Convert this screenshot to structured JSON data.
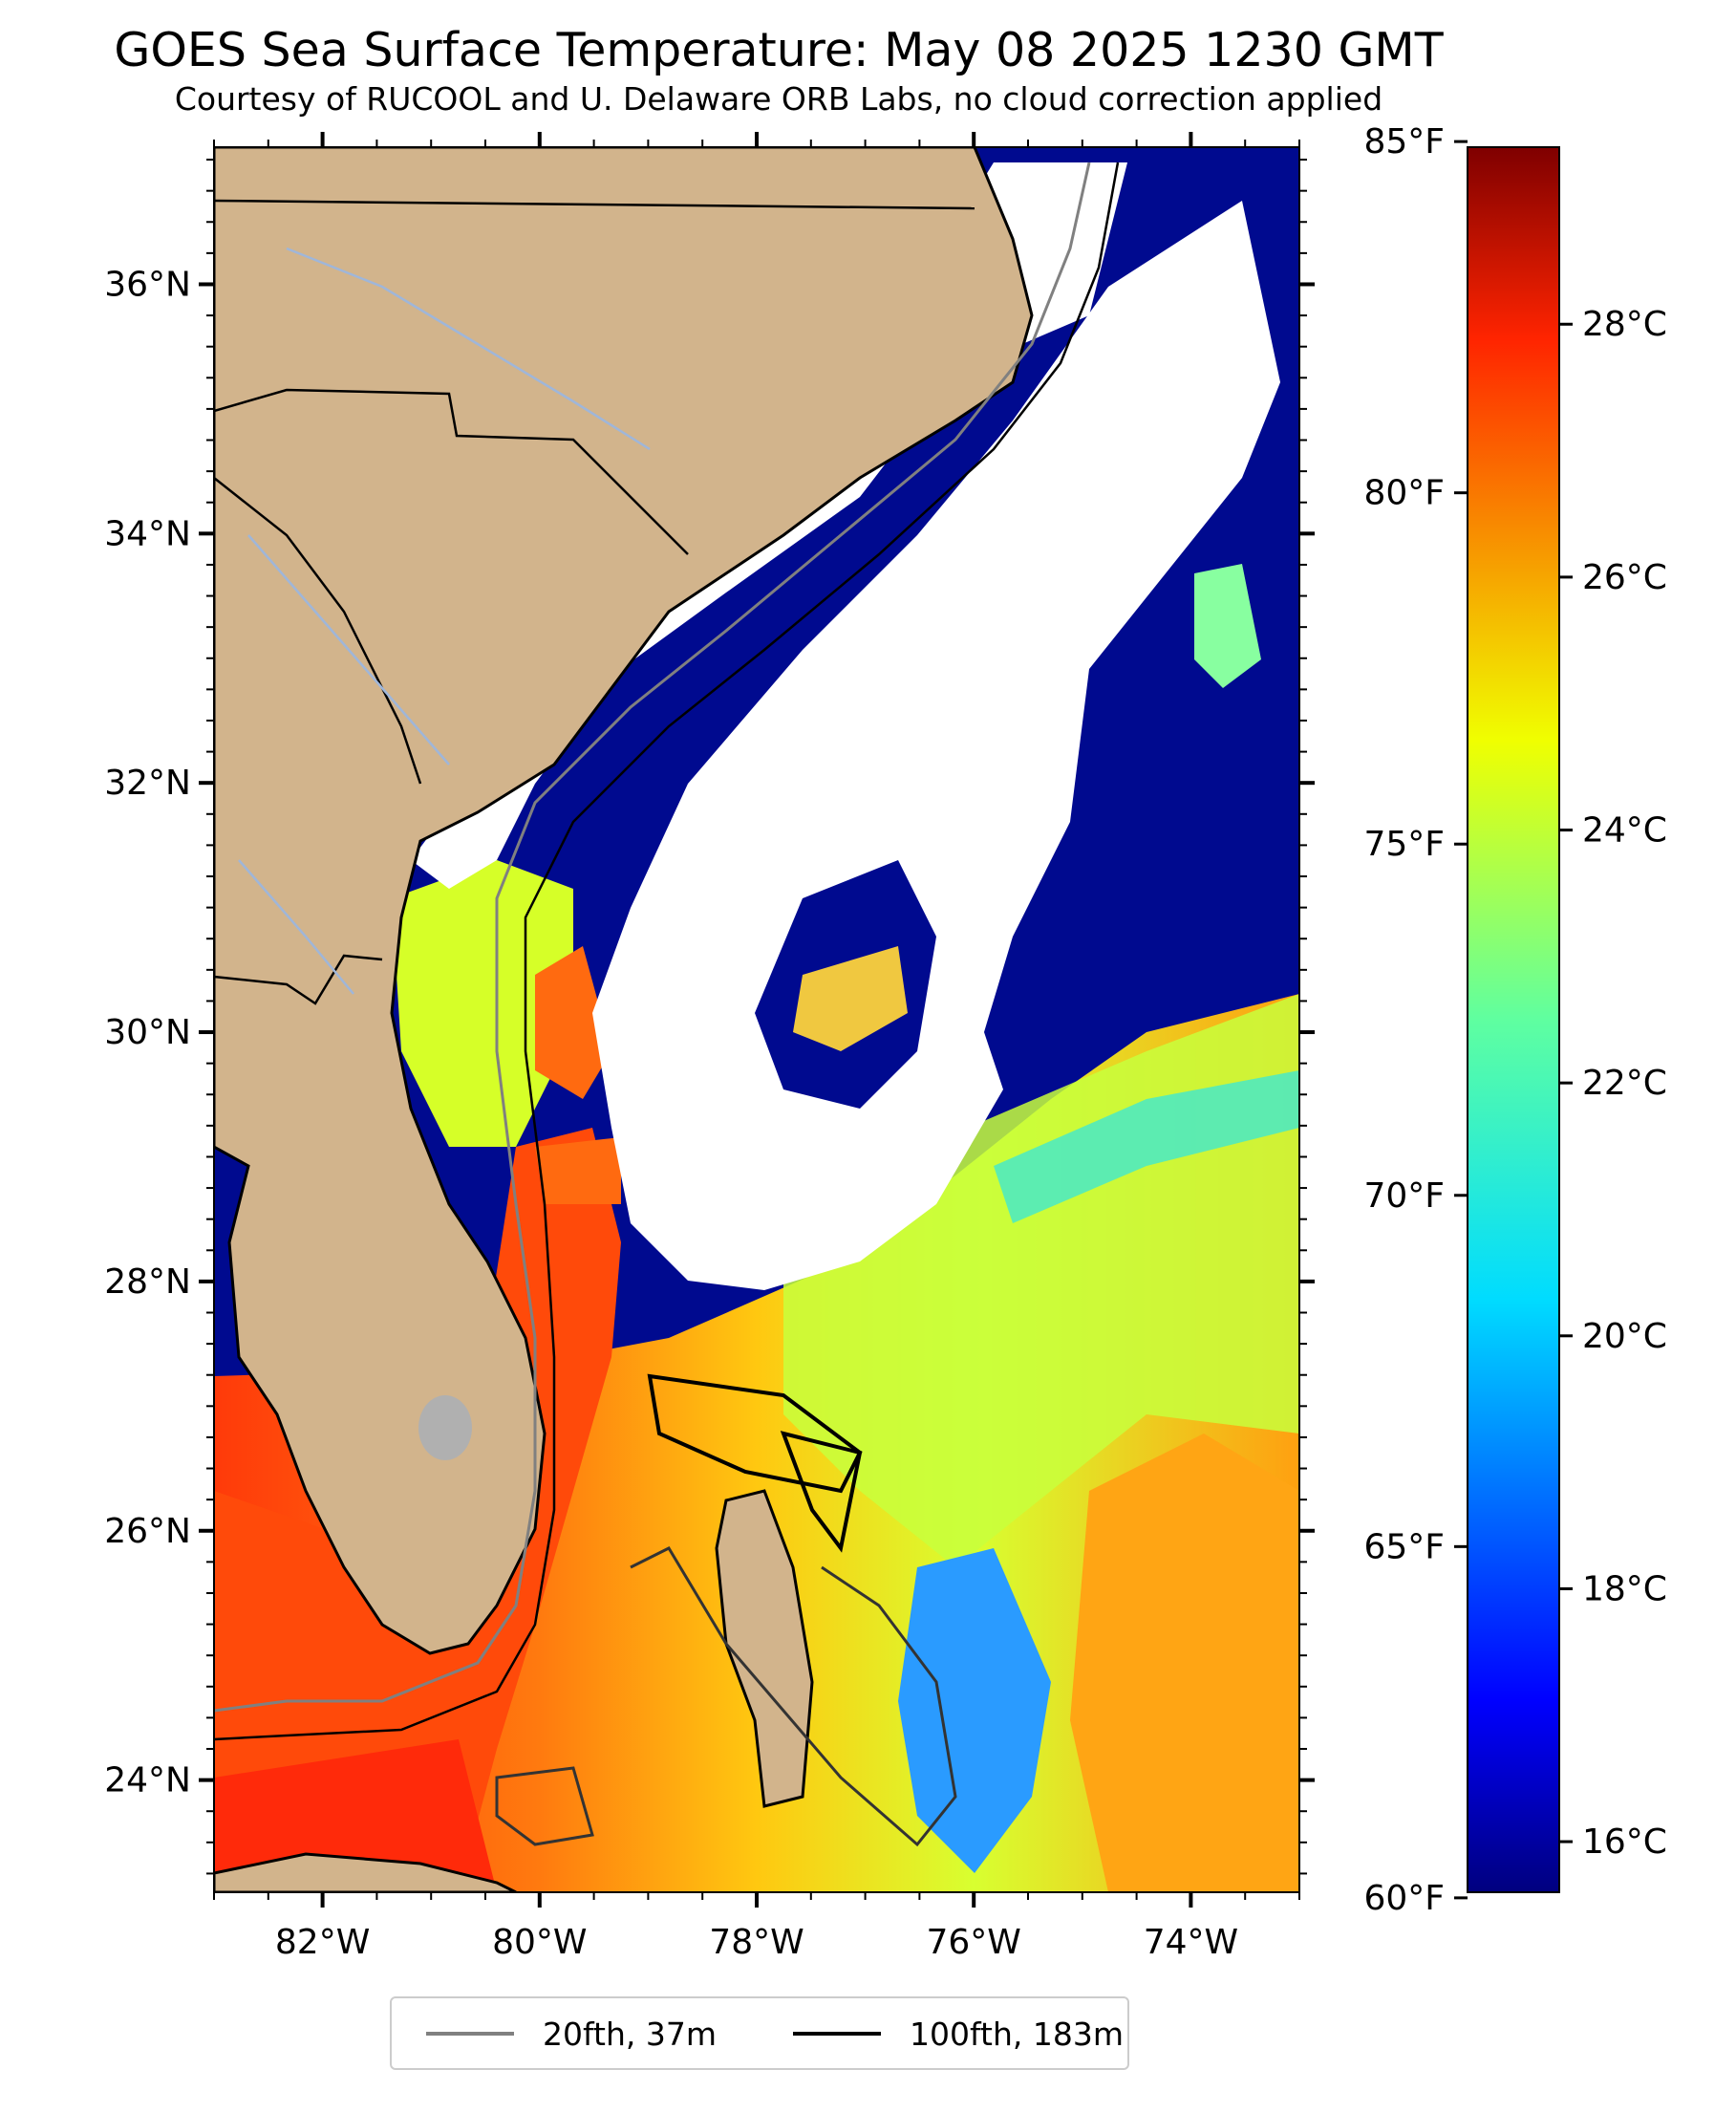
{
  "header": {
    "title": "GOES Sea Surface Temperature: May 08 2025 1230 GMT",
    "subtitle": "Courtesy of RUCOOL and U. Delaware ORB Labs, no cloud correction applied"
  },
  "map": {
    "lon_range": [
      -83,
      -73
    ],
    "lat_range": [
      23.1,
      37.1
    ],
    "lat_ticks": [
      {
        "value": 36,
        "label": "36°N"
      },
      {
        "value": 34,
        "label": "34°N"
      },
      {
        "value": 32,
        "label": "32°N"
      },
      {
        "value": 30,
        "label": "30°N"
      },
      {
        "value": 28,
        "label": "28°N"
      },
      {
        "value": 26,
        "label": "26°N"
      },
      {
        "value": 24,
        "label": "24°N"
      }
    ],
    "lon_ticks": [
      {
        "value": -82,
        "label": "82°W"
      },
      {
        "value": -80,
        "label": "80°W"
      },
      {
        "value": -78,
        "label": "78°W"
      },
      {
        "value": -76,
        "label": "76°W"
      },
      {
        "value": -74,
        "label": "74°W"
      }
    ],
    "colors": {
      "land": "#d2b48c",
      "cloud": "#ffffff",
      "border": "#000000",
      "river": "#9fb6d9",
      "isobath_20fth": "#808080",
      "isobath_100fth": "#000000"
    }
  },
  "colorbar": {
    "celsius_range": [
      15.6,
      29.4
    ],
    "fahrenheit_ticks": [
      {
        "value": 85,
        "label": "85°F"
      },
      {
        "value": 80,
        "label": "80°F"
      },
      {
        "value": 75,
        "label": "75°F"
      },
      {
        "value": 70,
        "label": "70°F"
      },
      {
        "value": 65,
        "label": "65°F"
      },
      {
        "value": 60,
        "label": "60°F"
      }
    ],
    "celsius_ticks": [
      {
        "value": 28,
        "label": "28°C"
      },
      {
        "value": 26,
        "label": "26°C"
      },
      {
        "value": 24,
        "label": "24°C"
      },
      {
        "value": 22,
        "label": "22°C"
      },
      {
        "value": 20,
        "label": "20°C"
      },
      {
        "value": 18,
        "label": "18°C"
      },
      {
        "value": 16,
        "label": "16°C"
      }
    ],
    "colormap": "jet"
  },
  "legend": {
    "items": [
      {
        "label": "20fth, 37m",
        "color": "#808080"
      },
      {
        "label": "100fth, 183m",
        "color": "#000000"
      }
    ]
  }
}
